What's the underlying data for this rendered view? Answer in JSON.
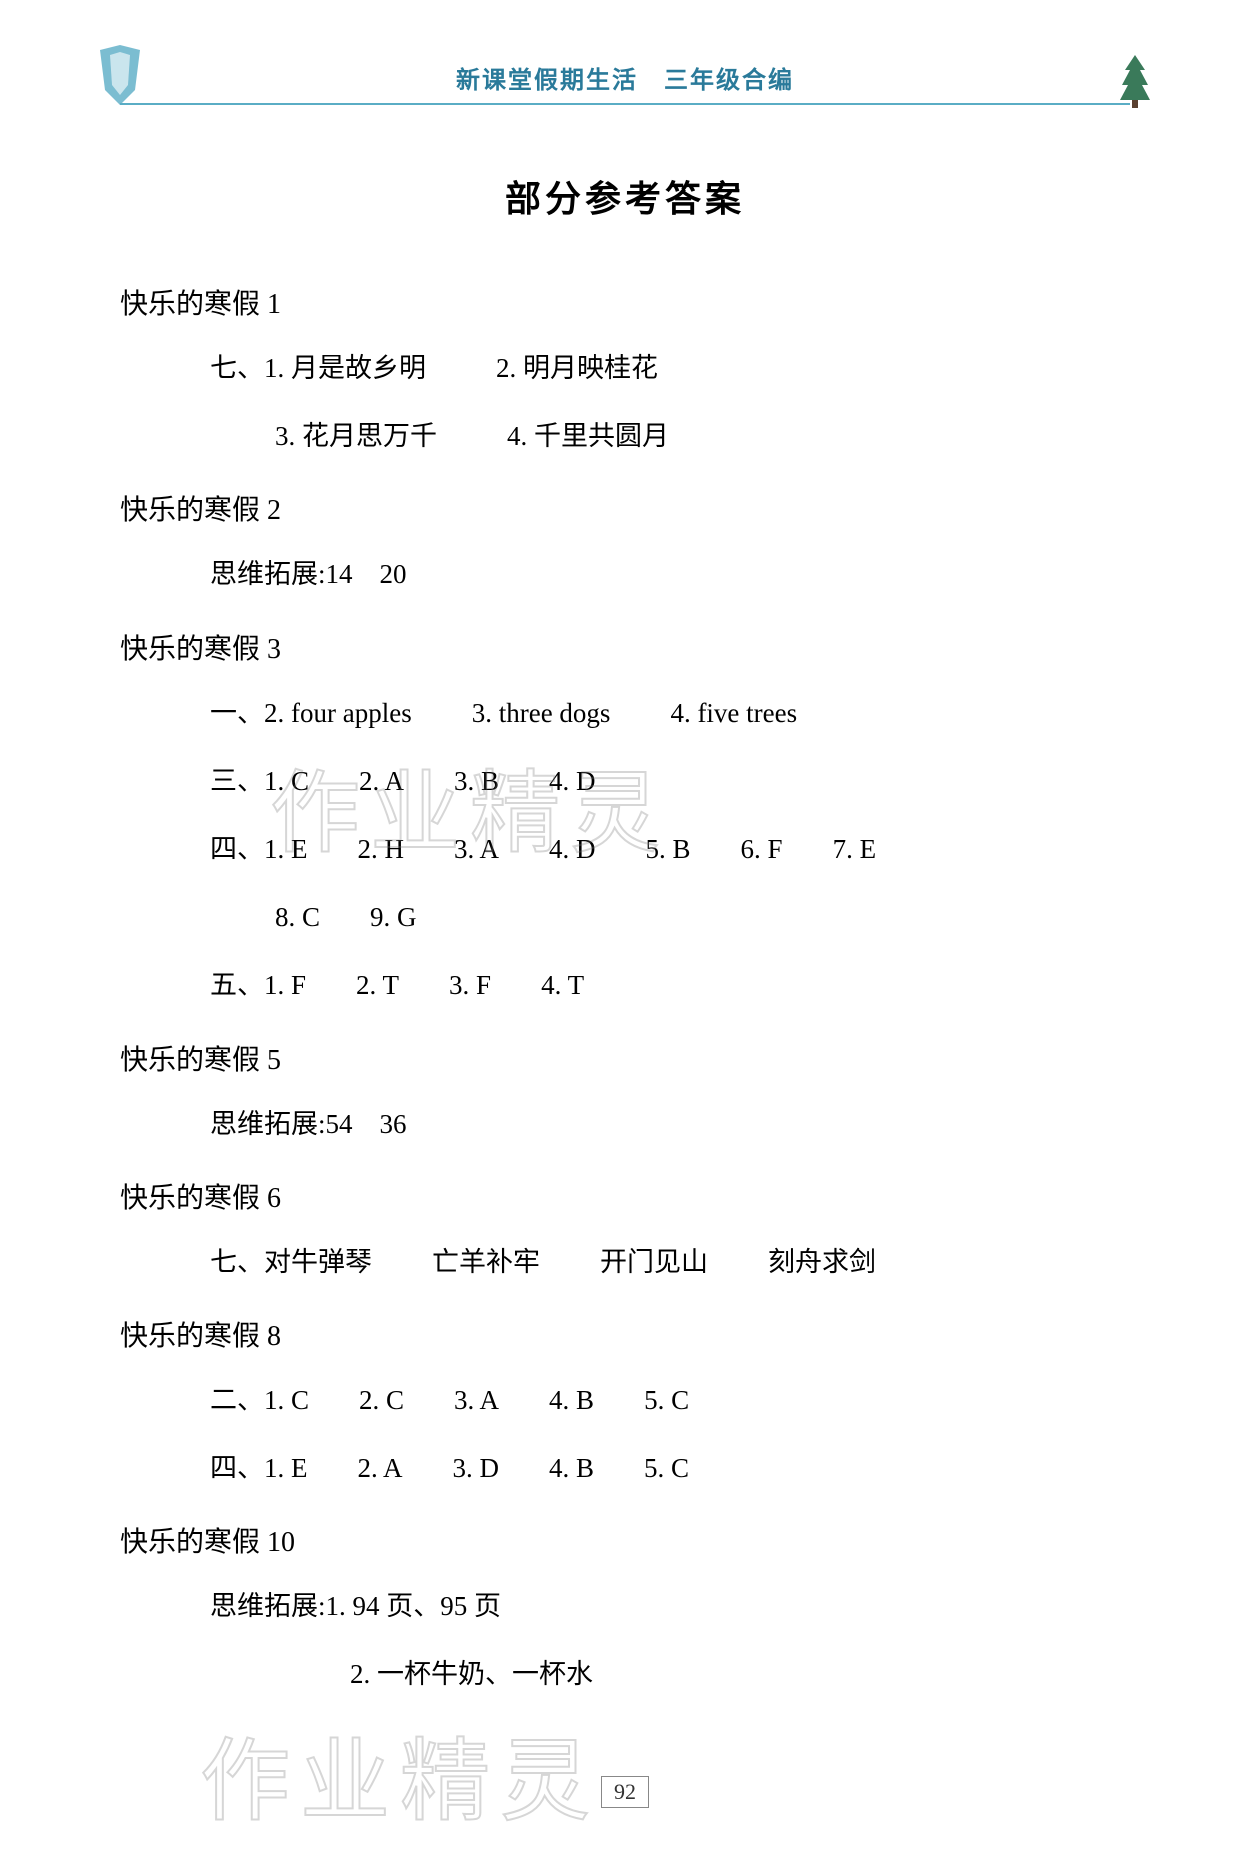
{
  "header": {
    "title": "新课堂假期生活　三年级合编",
    "color": "#2a7a9a",
    "underline_color": "#5aadc5"
  },
  "main_title": "部分参考答案",
  "sections": [
    {
      "heading": "快乐的寒假 1",
      "lines": [
        {
          "indent": 90,
          "spans": [
            {
              "text": "七、1. 月是故乡明",
              "gap": 70
            },
            {
              "text": "2. 明月映桂花",
              "gap": 0
            }
          ]
        },
        {
          "indent": 155,
          "spans": [
            {
              "text": "3. 花月思万千",
              "gap": 70
            },
            {
              "text": "4. 千里共圆月",
              "gap": 0
            }
          ]
        }
      ]
    },
    {
      "heading": "快乐的寒假 2",
      "lines": [
        {
          "indent": 90,
          "spans": [
            {
              "text": "思维拓展:14　20",
              "gap": 0
            }
          ]
        }
      ]
    },
    {
      "heading": "快乐的寒假 3",
      "lines": [
        {
          "indent": 90,
          "spans": [
            {
              "text": "一、2. four apples",
              "gap": 60
            },
            {
              "text": "3. three dogs",
              "gap": 60
            },
            {
              "text": "4. five trees",
              "gap": 0
            }
          ]
        },
        {
          "indent": 90,
          "spans": [
            {
              "text": "三、1. C",
              "gap": 50
            },
            {
              "text": "2. A",
              "gap": 50
            },
            {
              "text": "3. B",
              "gap": 50
            },
            {
              "text": "4. D",
              "gap": 0
            }
          ]
        },
        {
          "indent": 90,
          "spans": [
            {
              "text": "四、1. E",
              "gap": 50
            },
            {
              "text": "2. H",
              "gap": 50
            },
            {
              "text": "3. A",
              "gap": 50
            },
            {
              "text": "4. D",
              "gap": 50
            },
            {
              "text": "5. B",
              "gap": 50
            },
            {
              "text": "6. F",
              "gap": 50
            },
            {
              "text": "7. E",
              "gap": 0
            }
          ]
        },
        {
          "indent": 155,
          "spans": [
            {
              "text": "8. C",
              "gap": 50
            },
            {
              "text": "9. G",
              "gap": 0
            }
          ]
        },
        {
          "indent": 90,
          "spans": [
            {
              "text": "五、1. F",
              "gap": 50
            },
            {
              "text": "2. T",
              "gap": 50
            },
            {
              "text": "3. F",
              "gap": 50
            },
            {
              "text": "4. T",
              "gap": 0
            }
          ]
        }
      ]
    },
    {
      "heading": "快乐的寒假 5",
      "lines": [
        {
          "indent": 90,
          "spans": [
            {
              "text": "思维拓展:54　36",
              "gap": 0
            }
          ]
        }
      ]
    },
    {
      "heading": "快乐的寒假 6",
      "lines": [
        {
          "indent": 90,
          "spans": [
            {
              "text": "七、对牛弹琴",
              "gap": 60
            },
            {
              "text": "亡羊补牢",
              "gap": 60
            },
            {
              "text": "开门见山",
              "gap": 60
            },
            {
              "text": "刻舟求剑",
              "gap": 0
            }
          ]
        }
      ]
    },
    {
      "heading": "快乐的寒假 8",
      "lines": [
        {
          "indent": 90,
          "spans": [
            {
              "text": "二、1. C",
              "gap": 50
            },
            {
              "text": "2. C",
              "gap": 50
            },
            {
              "text": "3. A",
              "gap": 50
            },
            {
              "text": "4. B",
              "gap": 50
            },
            {
              "text": "5. C",
              "gap": 0
            }
          ]
        },
        {
          "indent": 90,
          "spans": [
            {
              "text": "四、1. E",
              "gap": 50
            },
            {
              "text": "2. A",
              "gap": 50
            },
            {
              "text": "3. D",
              "gap": 50
            },
            {
              "text": "4. B",
              "gap": 50
            },
            {
              "text": "5. C",
              "gap": 0
            }
          ]
        }
      ]
    },
    {
      "heading": "快乐的寒假 10",
      "lines": [
        {
          "indent": 90,
          "spans": [
            {
              "text": "思维拓展:1. 94 页、95 页",
              "gap": 0
            }
          ]
        },
        {
          "indent": 230,
          "spans": [
            {
              "text": "2. 一杯牛奶、一杯水",
              "gap": 0
            }
          ]
        }
      ]
    }
  ],
  "watermark_text": "作业精灵",
  "page_number": "92",
  "colors": {
    "background": "#ffffff",
    "text": "#000000",
    "header_text": "#2a7a9a",
    "watermark": "rgba(150,150,150,0.25)"
  },
  "fonts": {
    "body": "SimSun",
    "title_size": 36,
    "heading_size": 28,
    "text_size": 27,
    "header_size": 24
  }
}
